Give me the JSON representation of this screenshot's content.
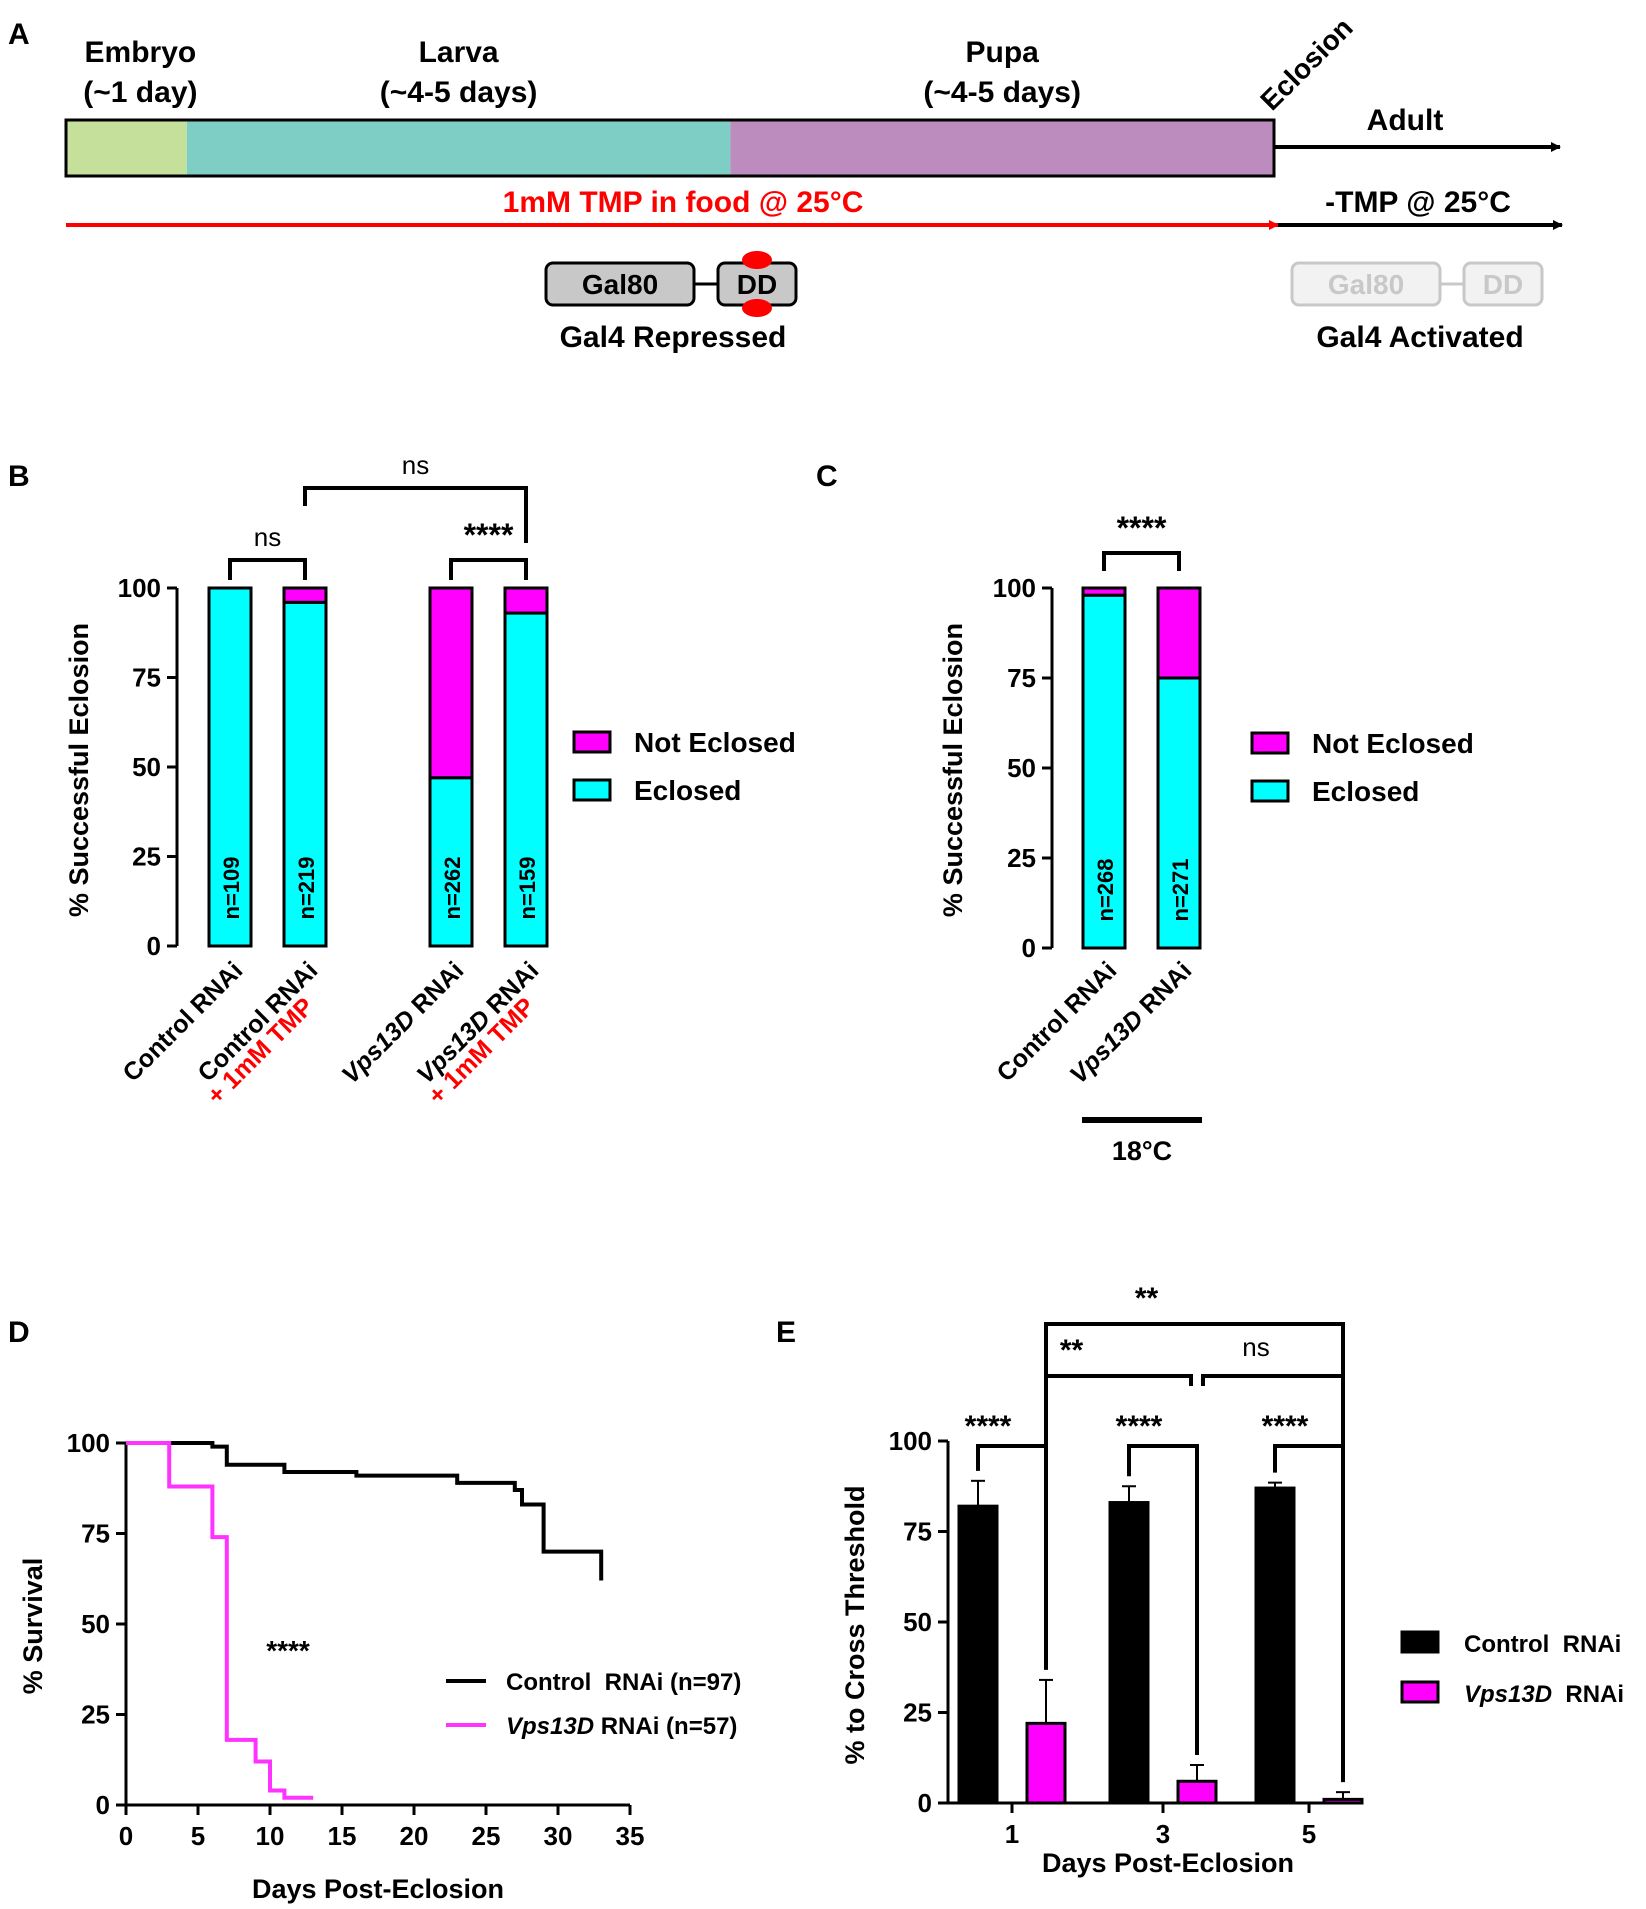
{
  "panel_labels": {
    "a": "A",
    "b": "B",
    "c": "C",
    "d": "D",
    "e": "E"
  },
  "timeline": {
    "stages": [
      {
        "name": "Embryo",
        "duration": "(~1 day)",
        "days": 1,
        "color": "#c5e09a"
      },
      {
        "name": "Larva",
        "duration": "(~4-5 days)",
        "days": 4.5,
        "color": "#7ecec6"
      },
      {
        "name": "Pupa",
        "duration": "(~4-5 days)",
        "days": 4.5,
        "color": "#bc8cbe"
      }
    ],
    "eclosion_label": "Eclosion",
    "adult_label": "Adult",
    "tmp_label": "1mM TMP in food @ 25°C",
    "no_tmp_label": "-TMP @ 25°C",
    "gal80_label": "Gal80",
    "dd_label": "DD",
    "repressed_label": "Gal4 Repressed",
    "activated_label": "Gal4 Activated",
    "colors": {
      "tmp_arrow": "#ff0000",
      "faded": "#c8c8c8",
      "construct_fill": "#c8c8c8"
    }
  },
  "panel_b": {
    "chart_data": {
      "type": "bar",
      "stacked": true,
      "ylabel": "% Successful Eclosion",
      "ylim": [
        0,
        100
      ],
      "yticks": [
        0,
        25,
        50,
        75,
        100
      ],
      "categories": [
        {
          "line1": "Control RNAi",
          "line2": ""
        },
        {
          "line1": "Control RNAi",
          "line2": "+ 1mM  TMP"
        },
        {
          "line1": "Vps13D RNAi",
          "line2": ""
        },
        {
          "line1": "Vps13D RNAi",
          "line2": "+ 1mM  TMP"
        }
      ],
      "series": [
        {
          "name": "Eclosed",
          "color": "#00ffff",
          "values": [
            100,
            96,
            47,
            93
          ]
        },
        {
          "name": "Not Eclosed",
          "color": "#ff00ff",
          "values": [
            0,
            4,
            53,
            7
          ]
        }
      ],
      "n_labels": [
        "n=109",
        "n=219",
        "n=262",
        "n=159"
      ],
      "significance": [
        {
          "label": "ns",
          "from": 0,
          "to": 1
        },
        {
          "label": "****",
          "from": 2,
          "to": 3
        },
        {
          "label": "ns",
          "from": 1,
          "to": 3
        }
      ],
      "legend": [
        "Not Eclosed",
        "Eclosed"
      ],
      "legend_position": "right"
    }
  },
  "panel_c": {
    "chart_data": {
      "type": "bar",
      "stacked": true,
      "ylabel": "% Successful Eclosion",
      "ylim": [
        0,
        100
      ],
      "yticks": [
        0,
        25,
        50,
        75,
        100
      ],
      "categories": [
        "Control RNAi",
        "Vps13D RNAi"
      ],
      "series": [
        {
          "name": "Eclosed",
          "color": "#00ffff",
          "values": [
            98,
            75
          ]
        },
        {
          "name": "Not Eclosed",
          "color": "#ff00ff",
          "values": [
            2,
            25
          ]
        }
      ],
      "n_labels": [
        "n=268",
        "n=271"
      ],
      "significance": [
        {
          "label": "****",
          "from": 0,
          "to": 1
        }
      ],
      "group_label": "18°C",
      "legend": [
        "Not Eclosed",
        "Eclosed"
      ],
      "legend_position": "right"
    }
  },
  "panel_d": {
    "chart_data": {
      "type": "line",
      "step": true,
      "xlabel": "Days Post-Eclosion",
      "ylabel": "% Survival",
      "xlim": [
        0,
        35
      ],
      "ylim": [
        0,
        100
      ],
      "xticks": [
        0,
        5,
        10,
        15,
        20,
        25,
        30,
        35
      ],
      "yticks": [
        0,
        25,
        50,
        75,
        100
      ],
      "series": [
        {
          "name": "Control  RNAi (n=97)",
          "color": "#000000",
          "points": [
            [
              0,
              100
            ],
            [
              6,
              99
            ],
            [
              7,
              94
            ],
            [
              11,
              92
            ],
            [
              16,
              91
            ],
            [
              23,
              89
            ],
            [
              27,
              87
            ],
            [
              27.5,
              83
            ],
            [
              29,
              70
            ],
            [
              33,
              62
            ]
          ]
        },
        {
          "name": "Vps13D RNAi (n=57)",
          "name_italic": "Vps13D",
          "name_rest": " RNAi (n=57)",
          "color": "#ff33ff",
          "points": [
            [
              0,
              100
            ],
            [
              3,
              88
            ],
            [
              6,
              74
            ],
            [
              7,
              18
            ],
            [
              9,
              12
            ],
            [
              10,
              4
            ],
            [
              11,
              2
            ],
            [
              13,
              2
            ]
          ]
        }
      ],
      "annotation": "****",
      "legend_position": "bottom-right"
    }
  },
  "panel_e": {
    "chart_data": {
      "type": "bar",
      "xlabel": "Days Post-Eclosion",
      "ylabel": "% to Cross Threshold",
      "ylim": [
        0,
        100
      ],
      "yticks": [
        0,
        25,
        50,
        75,
        100
      ],
      "categories": [
        "1",
        "3",
        "5"
      ],
      "series": [
        {
          "name": "Control  RNAi",
          "color": "#000000",
          "values": [
            82,
            83,
            87
          ],
          "errors": [
            7,
            4.5,
            1.5
          ]
        },
        {
          "name": "Vps13D RNAi",
          "name_italic": "Vps13D",
          "name_rest": "  RNAi",
          "color": "#ff00ff",
          "values": [
            22,
            6,
            1
          ],
          "errors": [
            12,
            4.5,
            2
          ]
        }
      ],
      "significance_within": [
        "****",
        "****",
        "****"
      ],
      "significance_between": [
        {
          "label": "**",
          "from": 0,
          "to": 1
        },
        {
          "label": "ns",
          "from": 1,
          "to": 2
        },
        {
          "label": "**",
          "from": 0,
          "to": 2
        }
      ],
      "legend_position": "right"
    }
  }
}
